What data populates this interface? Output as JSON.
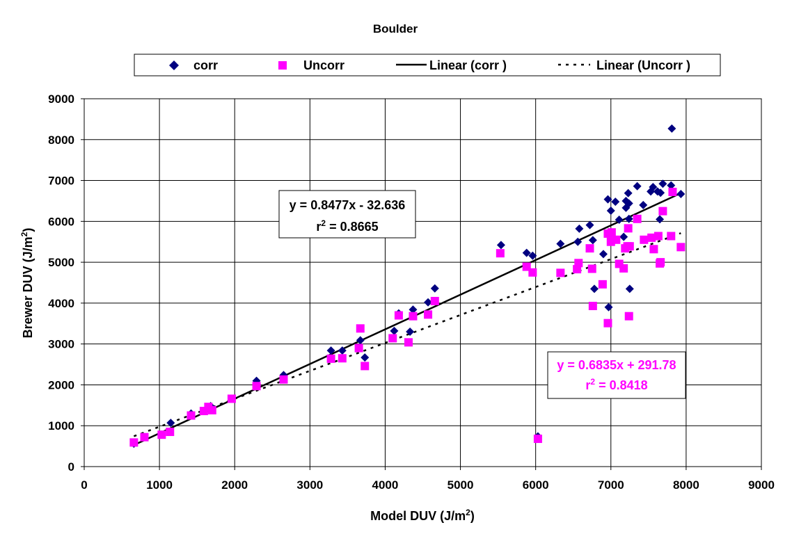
{
  "chart_data": {
    "type": "scatter",
    "title": "Boulder",
    "xlabel": {
      "main": "Model DUV (J/m",
      "sup": "2",
      "tail": ")"
    },
    "ylabel": {
      "main": "Brewer DUV (J/m",
      "sup": "2",
      "tail": ")"
    },
    "xlim": [
      0,
      9000
    ],
    "ylim": [
      0,
      9000
    ],
    "xticks": [
      "0",
      "1000",
      "2000",
      "3000",
      "4000",
      "5000",
      "6000",
      "7000",
      "8000",
      "9000"
    ],
    "yticks": [
      "0",
      "1000",
      "2000",
      "3000",
      "4000",
      "5000",
      "6000",
      "7000",
      "8000",
      "9000"
    ],
    "grid": true,
    "legend_position": "top",
    "series": [
      {
        "name": "corr",
        "marker": "diamond",
        "color": "#000080",
        "points": [
          [
            660,
            560
          ],
          [
            800,
            720
          ],
          [
            1020,
            780
          ],
          [
            1150,
            1070
          ],
          [
            1420,
            1300
          ],
          [
            1600,
            1370
          ],
          [
            1680,
            1480
          ],
          [
            2290,
            2100
          ],
          [
            2650,
            2240
          ],
          [
            3280,
            2840
          ],
          [
            3430,
            2840
          ],
          [
            3670,
            3090
          ],
          [
            3730,
            2670
          ],
          [
            4120,
            3320
          ],
          [
            4180,
            3750
          ],
          [
            4330,
            3300
          ],
          [
            4370,
            3840
          ],
          [
            4570,
            4020
          ],
          [
            4660,
            4360
          ],
          [
            5540,
            5420
          ],
          [
            5880,
            5230
          ],
          [
            5960,
            5160
          ],
          [
            6030,
            740
          ],
          [
            6330,
            5450
          ],
          [
            6560,
            5500
          ],
          [
            6580,
            5820
          ],
          [
            6720,
            5910
          ],
          [
            6760,
            5540
          ],
          [
            6780,
            4350
          ],
          [
            6900,
            5200
          ],
          [
            6960,
            6540
          ],
          [
            6970,
            3900
          ],
          [
            7000,
            6260
          ],
          [
            7060,
            6480
          ],
          [
            7110,
            6040
          ],
          [
            7170,
            5620
          ],
          [
            7200,
            6500
          ],
          [
            7200,
            6330
          ],
          [
            7230,
            6690
          ],
          [
            7240,
            6440
          ],
          [
            7250,
            4350
          ],
          [
            7240,
            6060
          ],
          [
            7350,
            6860
          ],
          [
            7430,
            6400
          ],
          [
            7530,
            6730
          ],
          [
            7560,
            6840
          ],
          [
            7620,
            6730
          ],
          [
            7650,
            6050
          ],
          [
            7660,
            6700
          ],
          [
            7690,
            6920
          ],
          [
            7800,
            6880
          ],
          [
            7810,
            8270
          ],
          [
            7930,
            6670
          ]
        ]
      },
      {
        "name": "Uncorr",
        "marker": "square",
        "color": "#ff00ff",
        "points": [
          [
            660,
            590
          ],
          [
            800,
            720
          ],
          [
            1030,
            780
          ],
          [
            1140,
            850
          ],
          [
            1420,
            1250
          ],
          [
            1590,
            1360
          ],
          [
            1650,
            1460
          ],
          [
            1700,
            1380
          ],
          [
            1960,
            1660
          ],
          [
            2290,
            1970
          ],
          [
            2650,
            2130
          ],
          [
            3280,
            2640
          ],
          [
            3430,
            2650
          ],
          [
            3650,
            2900
          ],
          [
            3670,
            3380
          ],
          [
            3730,
            2460
          ],
          [
            4100,
            3140
          ],
          [
            4180,
            3700
          ],
          [
            4310,
            3040
          ],
          [
            4370,
            3680
          ],
          [
            4570,
            3720
          ],
          [
            4660,
            4050
          ],
          [
            5530,
            5220
          ],
          [
            5880,
            4890
          ],
          [
            5960,
            4750
          ],
          [
            6030,
            680
          ],
          [
            6330,
            4740
          ],
          [
            6550,
            4830
          ],
          [
            6570,
            4980
          ],
          [
            6720,
            5340
          ],
          [
            6750,
            4840
          ],
          [
            6760,
            3930
          ],
          [
            6890,
            4460
          ],
          [
            6960,
            3510
          ],
          [
            6960,
            5700
          ],
          [
            7000,
            5500
          ],
          [
            7010,
            5730
          ],
          [
            7070,
            5550
          ],
          [
            7110,
            4960
          ],
          [
            7170,
            4850
          ],
          [
            7190,
            5340
          ],
          [
            7220,
            5390
          ],
          [
            7230,
            5830
          ],
          [
            7240,
            3680
          ],
          [
            7250,
            5390
          ],
          [
            7350,
            6060
          ],
          [
            7440,
            5550
          ],
          [
            7540,
            5600
          ],
          [
            7570,
            5320
          ],
          [
            7630,
            5640
          ],
          [
            7650,
            4970
          ],
          [
            7660,
            5000
          ],
          [
            7690,
            6250
          ],
          [
            7800,
            5640
          ],
          [
            7820,
            6720
          ],
          [
            7930,
            5370
          ]
        ]
      }
    ],
    "trendlines": [
      {
        "name": "Linear (corr )",
        "of_series": "corr",
        "style": "solid",
        "slope": 0.8477,
        "intercept": -32.636,
        "x_range": [
          660,
          7930
        ],
        "equation": "y = 0.8477x - 32.636",
        "r2_label": "r",
        "r2_sup": "2",
        "r2_value": " = 0.8665",
        "label_color": "#000000"
      },
      {
        "name": "Linear (Uncorr )",
        "of_series": "Uncorr",
        "style": "dashed",
        "slope": 0.6835,
        "intercept": 291.78,
        "x_range": [
          660,
          7930
        ],
        "equation": "y = 0.6835x + 291.78",
        "r2_label": "r",
        "r2_sup": "2",
        "r2_value": " = 0.8418",
        "label_color": "#ff00ff"
      }
    ]
  }
}
